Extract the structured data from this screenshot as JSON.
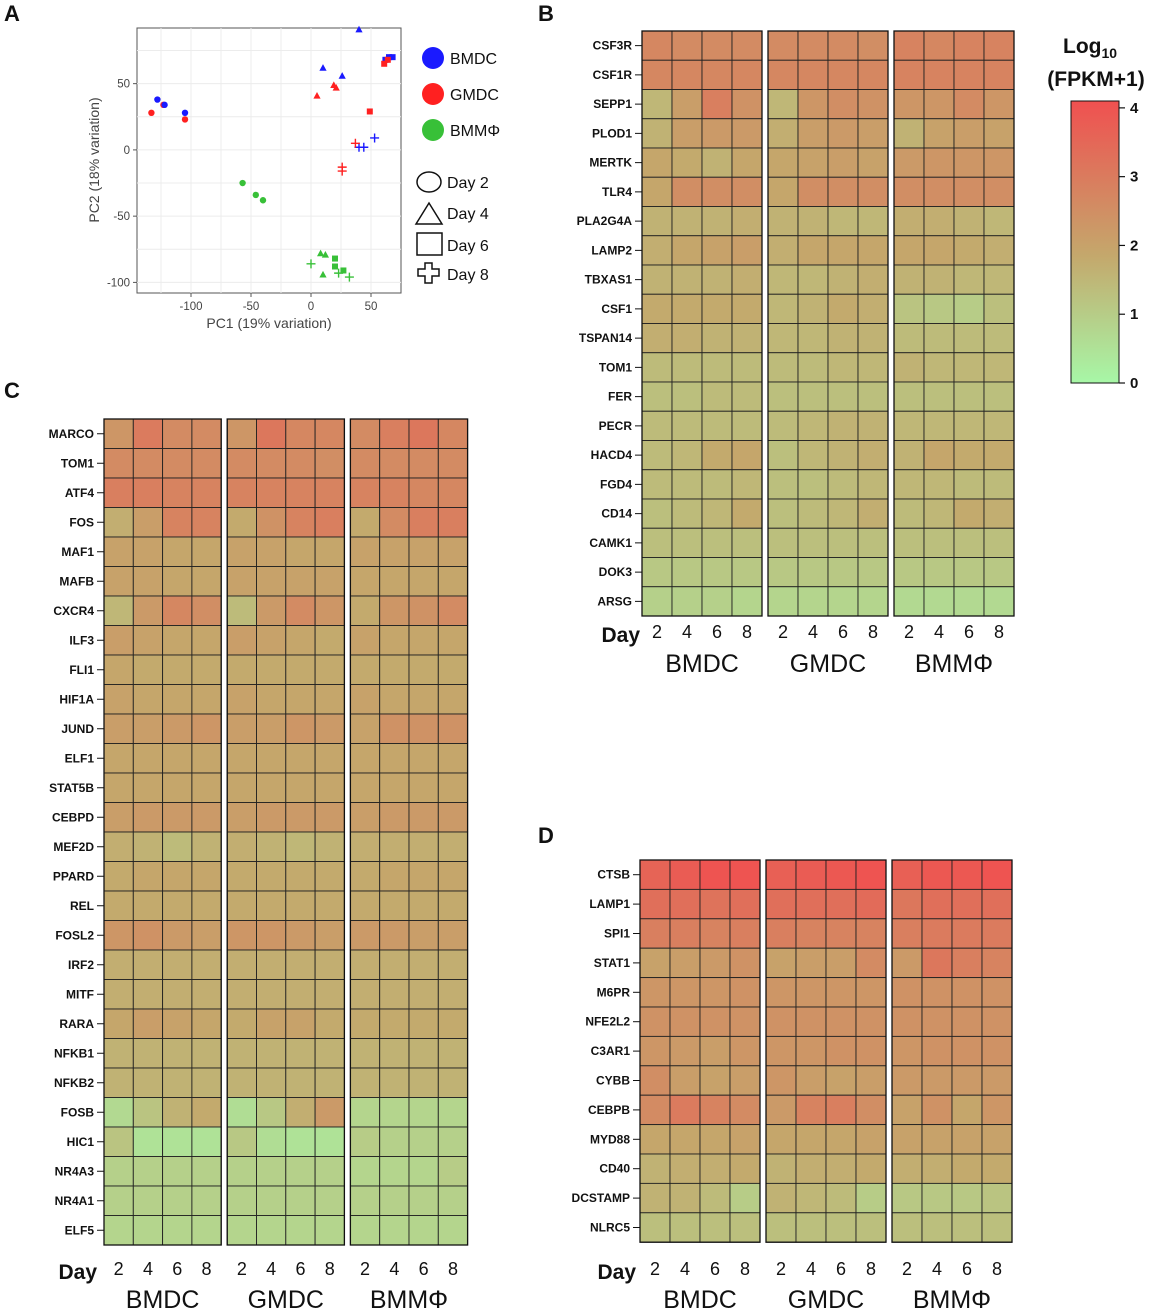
{
  "panels": {
    "A": "A",
    "B": "B",
    "C": "C",
    "D": "D"
  },
  "colorbar": {
    "title_main": "Log",
    "title_sub": "10",
    "title_line2": "(FPKM+1)",
    "ticks": [
      "0",
      "1",
      "2",
      "3",
      "4"
    ],
    "min": 0,
    "max": 4.1,
    "low_color": "#a7f7a7",
    "mid_color": "#c4a86c",
    "high_color": "#f05050"
  },
  "chart_data": [
    {
      "id": "A",
      "type": "scatter",
      "xlabel": "PC1 (19% variation)",
      "ylabel": "PC2 (18% variation)",
      "xlim": [
        -145,
        75
      ],
      "ylim": [
        -108,
        92
      ],
      "xticks": [
        -100,
        -50,
        0,
        50
      ],
      "yticks": [
        50,
        0,
        -50,
        -100
      ],
      "legend_colors": [
        {
          "label": "BMDC",
          "color": "#1a1aff"
        },
        {
          "label": "GMDC",
          "color": "#ff2020"
        },
        {
          "label": "BMMΦ",
          "color": "#38c038"
        }
      ],
      "legend_shapes": [
        {
          "label": "Day 2",
          "shape": "circle"
        },
        {
          "label": "Day 4",
          "shape": "triangle"
        },
        {
          "label": "Day 6",
          "shape": "square"
        },
        {
          "label": "Day 8",
          "shape": "plus"
        }
      ],
      "points": [
        {
          "x": -128,
          "y": 38,
          "group": "BMDC",
          "day": 2
        },
        {
          "x": -105,
          "y": 28,
          "group": "BMDC",
          "day": 2
        },
        {
          "x": -133,
          "y": 28,
          "group": "GMDC",
          "day": 2
        },
        {
          "x": -123,
          "y": 34,
          "group": "GMDC",
          "day": 2
        },
        {
          "x": -105,
          "y": 23,
          "group": "GMDC",
          "day": 2
        },
        {
          "x": -122,
          "y": 34,
          "group": "BMDC",
          "day": 2
        },
        {
          "x": 10,
          "y": 62,
          "group": "BMDC",
          "day": 4
        },
        {
          "x": 26,
          "y": 56,
          "group": "BMDC",
          "day": 4
        },
        {
          "x": 40,
          "y": 91,
          "group": "BMDC",
          "day": 4
        },
        {
          "x": 5,
          "y": 41,
          "group": "GMDC",
          "day": 4
        },
        {
          "x": 19,
          "y": 49,
          "group": "GMDC",
          "day": 4
        },
        {
          "x": 21,
          "y": 47,
          "group": "GMDC",
          "day": 4
        },
        {
          "x": 62,
          "y": 68,
          "group": "BMDC",
          "day": 6
        },
        {
          "x": 65,
          "y": 70,
          "group": "BMDC",
          "day": 6
        },
        {
          "x": 68,
          "y": 70,
          "group": "BMDC",
          "day": 6
        },
        {
          "x": 61,
          "y": 65,
          "group": "GMDC",
          "day": 6
        },
        {
          "x": 64,
          "y": 68,
          "group": "GMDC",
          "day": 6
        },
        {
          "x": 49,
          "y": 29,
          "group": "GMDC",
          "day": 6
        },
        {
          "x": 40,
          "y": 2,
          "group": "BMDC",
          "day": 8
        },
        {
          "x": 44,
          "y": 2,
          "group": "BMDC",
          "day": 8
        },
        {
          "x": 53,
          "y": 9,
          "group": "BMDC",
          "day": 8
        },
        {
          "x": 37,
          "y": 5,
          "group": "GMDC",
          "day": 8
        },
        {
          "x": 26,
          "y": -13,
          "group": "GMDC",
          "day": 8
        },
        {
          "x": 26,
          "y": -16,
          "group": "GMDC",
          "day": 8
        },
        {
          "x": -57,
          "y": -25,
          "group": "BMMΦ",
          "day": 2
        },
        {
          "x": -46,
          "y": -34,
          "group": "BMMΦ",
          "day": 2
        },
        {
          "x": -40,
          "y": -38,
          "group": "BMMΦ",
          "day": 2
        },
        {
          "x": 8,
          "y": -78,
          "group": "BMMΦ",
          "day": 4
        },
        {
          "x": 12,
          "y": -79,
          "group": "BMMΦ",
          "day": 4
        },
        {
          "x": 10,
          "y": -94,
          "group": "BMMΦ",
          "day": 4
        },
        {
          "x": 20,
          "y": -82,
          "group": "BMMΦ",
          "day": 6
        },
        {
          "x": 20,
          "y": -88,
          "group": "BMMΦ",
          "day": 6
        },
        {
          "x": 27,
          "y": -91,
          "group": "BMMΦ",
          "day": 6
        },
        {
          "x": 0,
          "y": -86,
          "group": "BMMΦ",
          "day": 8
        },
        {
          "x": 23,
          "y": -93,
          "group": "BMMΦ",
          "day": 8
        },
        {
          "x": 32,
          "y": -96,
          "group": "BMMΦ",
          "day": 8
        }
      ]
    },
    {
      "id": "B",
      "type": "heatmap",
      "groups": [
        "BMDC",
        "GMDC",
        "BMMΦ"
      ],
      "days": [
        "2",
        "4",
        "6",
        "8"
      ],
      "day_label": "Day",
      "genes": [
        "CSF3R",
        "CSF1R",
        "SEPP1",
        "PLOD1",
        "MERTK",
        "TLR4",
        "PLA2G4A",
        "LAMP2",
        "TBXAS1",
        "CSF1",
        "TSPAN14",
        "TOM1",
        "FER",
        "PECR",
        "HACD4",
        "FGD4",
        "CD14",
        "CAMK1",
        "DOK3",
        "ARSG"
      ],
      "values": [
        [
          2.7,
          2.6,
          2.6,
          2.6,
          2.6,
          2.6,
          2.6,
          2.5,
          2.8,
          2.7,
          2.8,
          2.8
        ],
        [
          2.7,
          2.7,
          2.7,
          2.7,
          2.7,
          2.7,
          2.7,
          2.7,
          2.8,
          2.8,
          2.8,
          2.8
        ],
        [
          1.5,
          2.1,
          2.9,
          2.4,
          1.5,
          2.3,
          2.5,
          2.4,
          2.3,
          2.3,
          2.6,
          2.3
        ],
        [
          1.6,
          2.1,
          2.2,
          2.2,
          1.7,
          2.1,
          2.2,
          2.1,
          1.6,
          2.0,
          2.1,
          2.0
        ],
        [
          1.9,
          1.8,
          1.6,
          1.9,
          1.9,
          2.0,
          2.1,
          2.0,
          2.2,
          2.3,
          2.3,
          2.3
        ],
        [
          1.9,
          2.5,
          2.5,
          2.5,
          1.9,
          2.5,
          2.5,
          2.5,
          2.5,
          2.5,
          2.5,
          2.5
        ],
        [
          1.6,
          1.6,
          1.6,
          1.7,
          1.6,
          1.6,
          1.5,
          1.5,
          1.7,
          1.7,
          1.6,
          1.5
        ],
        [
          1.7,
          1.9,
          2.0,
          2.1,
          1.7,
          1.9,
          1.9,
          1.9,
          1.9,
          1.9,
          1.8,
          1.7
        ],
        [
          1.6,
          1.6,
          1.6,
          1.7,
          1.5,
          1.5,
          1.6,
          1.7,
          1.6,
          1.6,
          1.5,
          1.5
        ],
        [
          1.8,
          1.8,
          1.8,
          1.8,
          1.5,
          1.6,
          1.8,
          1.7,
          1.2,
          1.1,
          1.0,
          1.3
        ],
        [
          1.7,
          1.7,
          1.6,
          1.6,
          1.5,
          1.5,
          1.6,
          1.6,
          1.4,
          1.4,
          1.4,
          1.4
        ],
        [
          1.4,
          1.4,
          1.4,
          1.4,
          1.4,
          1.4,
          1.5,
          1.5,
          1.6,
          1.5,
          1.5,
          1.5
        ],
        [
          1.3,
          1.3,
          1.4,
          1.4,
          1.3,
          1.3,
          1.3,
          1.3,
          1.3,
          1.3,
          1.3,
          1.3
        ],
        [
          1.4,
          1.4,
          1.4,
          1.4,
          1.4,
          1.5,
          1.6,
          1.6,
          1.5,
          1.5,
          1.5,
          1.5
        ],
        [
          1.4,
          1.5,
          1.8,
          1.9,
          1.3,
          1.5,
          1.6,
          1.7,
          1.6,
          1.9,
          1.8,
          1.8
        ],
        [
          1.4,
          1.4,
          1.4,
          1.5,
          1.3,
          1.3,
          1.4,
          1.5,
          1.5,
          1.5,
          1.4,
          1.4
        ],
        [
          1.3,
          1.4,
          1.5,
          1.8,
          1.3,
          1.4,
          1.5,
          1.7,
          1.4,
          1.5,
          1.8,
          1.7
        ],
        [
          1.3,
          1.3,
          1.3,
          1.3,
          1.3,
          1.3,
          1.3,
          1.3,
          1.3,
          1.3,
          1.3,
          1.3
        ],
        [
          1.1,
          1.1,
          1.1,
          1.1,
          1.1,
          1.1,
          1.1,
          1.1,
          1.1,
          1.1,
          1.1,
          1.1
        ],
        [
          0.9,
          0.9,
          0.9,
          0.8,
          0.8,
          0.8,
          0.8,
          0.8,
          0.7,
          0.7,
          0.7,
          0.7
        ]
      ]
    },
    {
      "id": "C",
      "type": "heatmap",
      "groups": [
        "BMDC",
        "GMDC",
        "BMMΦ"
      ],
      "days": [
        "2",
        "4",
        "6",
        "8"
      ],
      "day_label": "Day",
      "genes": [
        "MARCO",
        "TOM1",
        "ATF4",
        "FOS",
        "MAF1",
        "MAFB",
        "CXCR4",
        "ILF3",
        "FLI1",
        "HIF1A",
        "JUND",
        "ELF1",
        "STAT5B",
        "CEBPD",
        "MEF2D",
        "PPARD",
        "REL",
        "FOSL2",
        "IRF2",
        "MITF",
        "RARA",
        "NFKB1",
        "NFKB2",
        "FOSB",
        "HIC1",
        "NR4A3",
        "NR4A1",
        "ELF5"
      ],
      "values": [
        [
          2.3,
          3.0,
          2.6,
          2.6,
          2.3,
          3.1,
          2.7,
          2.7,
          2.6,
          2.9,
          3.1,
          2.7
        ],
        [
          2.6,
          2.6,
          2.6,
          2.6,
          2.6,
          2.6,
          2.6,
          2.5,
          2.6,
          2.6,
          2.6,
          2.6
        ],
        [
          2.9,
          2.9,
          2.8,
          2.8,
          2.8,
          2.8,
          2.8,
          2.8,
          2.8,
          2.8,
          2.7,
          2.7
        ],
        [
          1.7,
          2.1,
          2.8,
          2.8,
          1.8,
          2.4,
          2.8,
          2.9,
          1.8,
          2.6,
          2.9,
          2.9
        ],
        [
          2.0,
          2.0,
          1.9,
          1.9,
          2.0,
          2.0,
          1.9,
          1.9,
          2.0,
          2.0,
          2.0,
          2.0
        ],
        [
          2.0,
          2.0,
          1.9,
          1.9,
          2.0,
          2.0,
          2.0,
          2.0,
          1.9,
          1.9,
          1.9,
          1.9
        ],
        [
          1.5,
          2.2,
          2.7,
          2.5,
          1.4,
          2.2,
          2.6,
          2.3,
          1.8,
          2.3,
          2.4,
          2.6
        ],
        [
          2.1,
          2.0,
          1.9,
          1.9,
          2.1,
          2.0,
          1.9,
          1.8,
          2.0,
          1.9,
          1.9,
          1.9
        ],
        [
          1.9,
          1.8,
          1.8,
          1.8,
          1.8,
          1.8,
          1.8,
          1.8,
          1.8,
          1.8,
          1.8,
          1.8
        ],
        [
          2.0,
          1.9,
          1.9,
          1.9,
          2.0,
          1.9,
          1.9,
          1.9,
          2.0,
          1.9,
          1.9,
          1.9
        ],
        [
          2.1,
          2.1,
          2.2,
          2.3,
          2.1,
          2.1,
          2.3,
          2.2,
          2.0,
          2.4,
          2.4,
          2.4
        ],
        [
          1.9,
          1.9,
          1.9,
          1.9,
          1.9,
          1.9,
          1.9,
          1.9,
          1.9,
          1.9,
          1.9,
          1.9
        ],
        [
          1.9,
          1.9,
          1.9,
          1.9,
          1.9,
          1.9,
          1.9,
          1.9,
          1.9,
          1.9,
          1.9,
          1.9
        ],
        [
          2.1,
          2.2,
          2.2,
          2.2,
          2.1,
          2.2,
          2.2,
          2.2,
          2.1,
          2.2,
          2.2,
          2.2
        ],
        [
          1.7,
          1.6,
          1.4,
          1.6,
          1.7,
          1.6,
          1.5,
          1.6,
          1.7,
          1.7,
          1.7,
          1.7
        ],
        [
          1.8,
          1.9,
          1.9,
          1.9,
          1.8,
          1.8,
          1.8,
          1.8,
          1.8,
          1.9,
          1.9,
          1.9
        ],
        [
          1.8,
          1.8,
          1.8,
          1.8,
          1.8,
          1.8,
          1.8,
          1.8,
          1.8,
          1.8,
          1.8,
          1.8
        ],
        [
          2.3,
          2.4,
          2.2,
          2.1,
          2.3,
          2.3,
          2.2,
          2.1,
          2.2,
          2.2,
          2.1,
          2.1
        ],
        [
          1.7,
          1.7,
          1.7,
          1.7,
          1.7,
          1.7,
          1.7,
          1.7,
          1.7,
          1.7,
          1.7,
          1.7
        ],
        [
          1.7,
          1.7,
          1.7,
          1.7,
          1.7,
          1.7,
          1.7,
          1.7,
          1.7,
          1.7,
          1.7,
          1.7
        ],
        [
          1.9,
          2.1,
          2.0,
          1.9,
          1.8,
          2.0,
          2.0,
          1.8,
          1.8,
          1.8,
          1.8,
          1.8
        ],
        [
          1.6,
          1.6,
          1.6,
          1.6,
          1.6,
          1.6,
          1.6,
          1.6,
          1.6,
          1.6,
          1.6,
          1.6
        ],
        [
          1.6,
          1.6,
          1.6,
          1.6,
          1.6,
          1.6,
          1.6,
          1.6,
          1.6,
          1.6,
          1.6,
          1.6
        ],
        [
          0.7,
          1.2,
          1.6,
          1.8,
          0.6,
          1.1,
          1.7,
          2.2,
          0.8,
          0.8,
          0.8,
          0.8
        ],
        [
          1.2,
          0.5,
          0.5,
          0.5,
          1.1,
          0.6,
          0.5,
          0.5,
          1.0,
          0.9,
          0.9,
          0.9
        ],
        [
          0.9,
          0.9,
          0.9,
          0.9,
          0.9,
          0.9,
          0.9,
          0.9,
          0.8,
          0.8,
          0.8,
          1.0
        ],
        [
          0.9,
          0.9,
          0.9,
          0.9,
          0.9,
          0.9,
          0.9,
          0.9,
          0.9,
          0.9,
          0.9,
          0.9
        ],
        [
          0.8,
          0.8,
          0.8,
          0.8,
          0.8,
          0.8,
          0.8,
          0.8,
          0.8,
          0.8,
          0.8,
          0.8
        ]
      ]
    },
    {
      "id": "D",
      "type": "heatmap",
      "groups": [
        "BMDC",
        "GMDC",
        "BMMΦ"
      ],
      "days": [
        "2",
        "4",
        "6",
        "8"
      ],
      "day_label": "Day",
      "genes": [
        "CTSB",
        "LAMP1",
        "SPI1",
        "STAT1",
        "M6PR",
        "NFE2L2",
        "C3AR1",
        "CYBB",
        "CEBPB",
        "MYD88",
        "CD40",
        "DCSTAMP",
        "NLRC5"
      ],
      "values": [
        [
          3.6,
          3.8,
          4.0,
          4.0,
          3.7,
          3.8,
          3.9,
          4.0,
          3.7,
          3.9,
          3.9,
          4.0
        ],
        [
          3.3,
          3.3,
          3.2,
          3.3,
          3.3,
          3.3,
          3.3,
          3.4,
          3.1,
          3.3,
          3.3,
          3.3
        ],
        [
          2.9,
          2.9,
          2.8,
          2.9,
          2.9,
          2.8,
          2.8,
          2.8,
          2.9,
          3.0,
          3.0,
          3.0
        ],
        [
          2.0,
          2.1,
          2.2,
          2.4,
          2.0,
          2.1,
          2.1,
          2.6,
          2.2,
          3.1,
          2.9,
          2.8
        ],
        [
          2.3,
          2.3,
          2.3,
          2.4,
          2.3,
          2.3,
          2.3,
          2.3,
          2.4,
          2.4,
          2.4,
          2.4
        ],
        [
          2.4,
          2.4,
          2.4,
          2.4,
          2.4,
          2.4,
          2.4,
          2.4,
          2.4,
          2.4,
          2.4,
          2.4
        ],
        [
          2.3,
          2.2,
          2.1,
          2.3,
          2.3,
          2.3,
          2.4,
          2.4,
          2.3,
          2.4,
          2.4,
          2.4
        ],
        [
          2.5,
          2.1,
          2.0,
          2.1,
          2.3,
          2.1,
          2.0,
          2.1,
          2.2,
          2.2,
          2.2,
          2.2
        ],
        [
          2.6,
          3.0,
          2.8,
          2.6,
          2.2,
          2.8,
          2.9,
          2.5,
          2.0,
          2.4,
          1.9,
          2.3
        ],
        [
          1.9,
          1.9,
          1.9,
          2.0,
          1.9,
          1.9,
          1.9,
          2.0,
          2.0,
          2.0,
          2.0,
          2.0
        ],
        [
          1.6,
          1.7,
          1.7,
          1.8,
          1.6,
          1.7,
          1.7,
          1.8,
          1.7,
          1.7,
          1.8,
          1.8
        ],
        [
          1.6,
          1.6,
          1.4,
          1.0,
          1.6,
          1.5,
          1.4,
          1.0,
          1.1,
          1.1,
          1.1,
          1.2
        ],
        [
          1.3,
          1.3,
          1.3,
          1.3,
          1.3,
          1.3,
          1.3,
          1.3,
          1.3,
          1.3,
          1.3,
          1.3
        ]
      ]
    }
  ]
}
